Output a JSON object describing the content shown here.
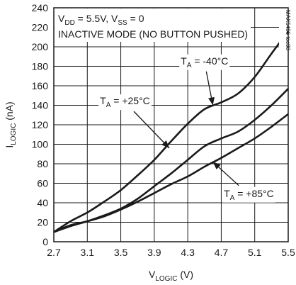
{
  "chart_data": {
    "type": "line",
    "title": "",
    "xlabel": {
      "main": "V",
      "sub": "LOGIC",
      "unit": " (V)"
    },
    "ylabel": {
      "main": "I",
      "sub": "LOGIC",
      "unit": " (nA)"
    },
    "xlim": [
      2.7,
      5.5
    ],
    "ylim": [
      0,
      240
    ],
    "xticks": [
      "2.7",
      "3.1",
      "3.5",
      "3.9",
      "4.3",
      "4.7",
      "5.1",
      "5.5"
    ],
    "yticks": [
      "0",
      "20",
      "40",
      "60",
      "80",
      "100",
      "120",
      "140",
      "160",
      "180",
      "200",
      "220",
      "240"
    ],
    "grid": true,
    "conditions": {
      "line1": {
        "v": "V",
        "dd": "DD",
        "eq1": " = 5.5V, V",
        "ss": "SS",
        "eq2": " = 0"
      },
      "line2": "INACTIVE MODE (NO BUTTON PUSHED)"
    },
    "code": "MAX5406 toc08",
    "series": [
      {
        "name": {
          "t": "T",
          "sub": "A",
          "rest": " = -40°C"
        },
        "x": [
          2.7,
          2.9,
          3.1,
          3.3,
          3.5,
          3.7,
          3.9,
          4.1,
          4.3,
          4.5,
          4.7,
          4.9,
          5.1,
          5.3,
          5.5
        ],
        "y": [
          10,
          21,
          30,
          41,
          53,
          68,
          84,
          103,
          121,
          136,
          143,
          152,
          169,
          193,
          216
        ]
      },
      {
        "name": {
          "t": "T",
          "sub": "A",
          "rest": " = +25°C"
        },
        "x": [
          2.7,
          2.9,
          3.1,
          3.3,
          3.5,
          3.7,
          3.9,
          4.1,
          4.3,
          4.5,
          4.7,
          4.9,
          5.1,
          5.3,
          5.5
        ],
        "y": [
          10,
          16,
          21,
          27,
          34,
          44,
          57,
          70,
          84,
          98,
          106,
          113,
          125,
          140,
          157
        ]
      },
      {
        "name": {
          "t": "T",
          "sub": "A",
          "rest": " = +85°C"
        },
        "x": [
          2.7,
          2.9,
          3.1,
          3.3,
          3.5,
          3.7,
          3.9,
          4.1,
          4.3,
          4.5,
          4.7,
          4.9,
          5.1,
          5.3,
          5.5
        ],
        "y": [
          10,
          17,
          21,
          26,
          33,
          41,
          50,
          59,
          67,
          77,
          86,
          96,
          106,
          118,
          131
        ]
      }
    ],
    "annotations": [
      {
        "series": 0,
        "text_x": 4.5,
        "text_y": 182,
        "arrow_to_x": 4.6,
        "arrow_to_y": 140
      },
      {
        "series": 1,
        "text_x": 3.55,
        "text_y": 141,
        "arrow_to_x": 4.08,
        "arrow_to_y": 96
      },
      {
        "series": 2,
        "text_x": 5.03,
        "text_y": 46,
        "arrow_to_x": 4.6,
        "arrow_to_y": 82
      }
    ]
  }
}
